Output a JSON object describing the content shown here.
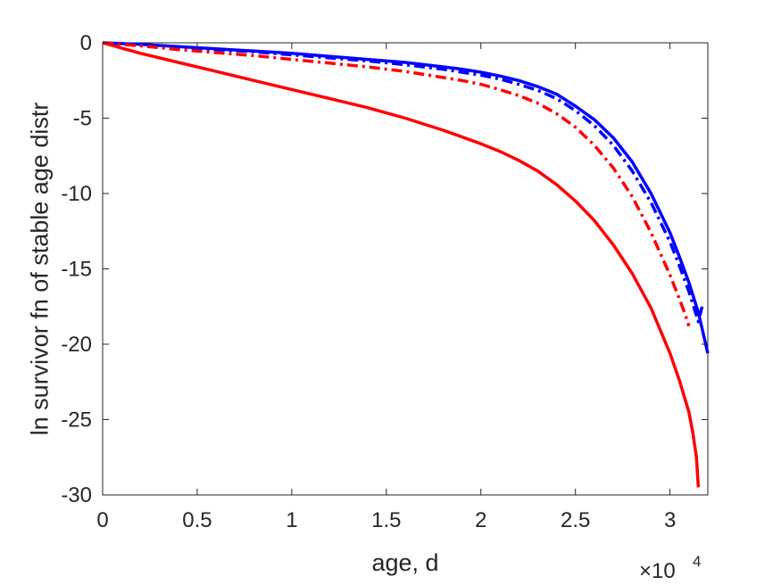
{
  "chart_data": {
    "type": "line",
    "xlabel": "age, d",
    "ylabel": "ln survivor fn of stable age distr",
    "x_multiplier_label": "×10",
    "x_multiplier_exponent": "4",
    "xlim": [
      0,
      32000
    ],
    "ylim": [
      -30,
      0
    ],
    "xticks": [
      0,
      5000,
      10000,
      15000,
      20000,
      25000,
      30000
    ],
    "xtick_labels": [
      "0",
      "0.5",
      "1",
      "1.5",
      "2",
      "2.5",
      "3"
    ],
    "yticks": [
      0,
      -5,
      -10,
      -15,
      -20,
      -25,
      -30
    ],
    "ytick_labels": [
      "0",
      "-5",
      "-10",
      "-15",
      "-20",
      "-25",
      "-30"
    ],
    "grid": false,
    "box": true,
    "series": [
      {
        "color": "#0000ff",
        "line_style": "solid",
        "x": [
          0,
          2000,
          4000,
          6000,
          8000,
          10000,
          12000,
          14000,
          16000,
          18000,
          19000,
          20000,
          21000,
          22000,
          23000,
          24000,
          25000,
          26000,
          27000,
          28000,
          29000,
          30000,
          30500,
          31000,
          31500,
          32000
        ],
        "y": [
          0,
          -0.1,
          -0.25,
          -0.4,
          -0.55,
          -0.7,
          -0.9,
          -1.1,
          -1.3,
          -1.6,
          -1.75,
          -1.95,
          -2.2,
          -2.5,
          -2.9,
          -3.4,
          -4.2,
          -5.1,
          -6.3,
          -7.9,
          -10.0,
          -12.6,
          -14.2,
          -15.9,
          -17.9,
          -20.6
        ]
      },
      {
        "color": "#0000ff",
        "line_style": "dashdot",
        "x": [
          0,
          2000,
          4000,
          6000,
          8000,
          10000,
          12000,
          14000,
          16000,
          18000,
          19000,
          20000,
          21000,
          22000,
          23000,
          24000,
          25000,
          26000,
          27000,
          28000,
          29000,
          30000,
          30500,
          31000,
          31500,
          31700
        ],
        "y": [
          0,
          -0.15,
          -0.3,
          -0.45,
          -0.6,
          -0.8,
          -1.0,
          -1.2,
          -1.45,
          -1.75,
          -1.95,
          -2.15,
          -2.4,
          -2.75,
          -3.15,
          -3.7,
          -4.5,
          -5.5,
          -6.8,
          -8.5,
          -10.6,
          -13.2,
          -14.8,
          -16.5,
          -18.5,
          -17.5
        ]
      },
      {
        "color": "#ff0000",
        "line_style": "dashdot",
        "x": [
          0,
          2000,
          4000,
          6000,
          8000,
          10000,
          12000,
          14000,
          16000,
          18000,
          19000,
          20000,
          21000,
          22000,
          23000,
          24000,
          25000,
          26000,
          27000,
          28000,
          29000,
          30000,
          30500,
          30800,
          31000
        ],
        "y": [
          0,
          -0.2,
          -0.45,
          -0.65,
          -0.85,
          -1.1,
          -1.35,
          -1.6,
          -1.9,
          -2.3,
          -2.5,
          -2.75,
          -3.1,
          -3.5,
          -4.0,
          -4.7,
          -5.6,
          -6.8,
          -8.3,
          -10.2,
          -12.6,
          -15.4,
          -17.0,
          -18.0,
          -18.8
        ]
      },
      {
        "color": "#ff0000",
        "line_style": "solid",
        "x": [
          0,
          2000,
          4000,
          6000,
          8000,
          10000,
          12000,
          14000,
          16000,
          18000,
          20000,
          21000,
          22000,
          23000,
          24000,
          25000,
          26000,
          27000,
          28000,
          29000,
          30000,
          30500,
          31000,
          31200,
          31400,
          31500
        ],
        "y": [
          0,
          -0.7,
          -1.3,
          -1.9,
          -2.5,
          -3.1,
          -3.7,
          -4.3,
          -5.0,
          -5.8,
          -6.7,
          -7.2,
          -7.8,
          -8.5,
          -9.4,
          -10.5,
          -11.8,
          -13.4,
          -15.3,
          -17.6,
          -20.6,
          -22.4,
          -24.5,
          -25.8,
          -27.5,
          -29.5
        ]
      }
    ]
  }
}
